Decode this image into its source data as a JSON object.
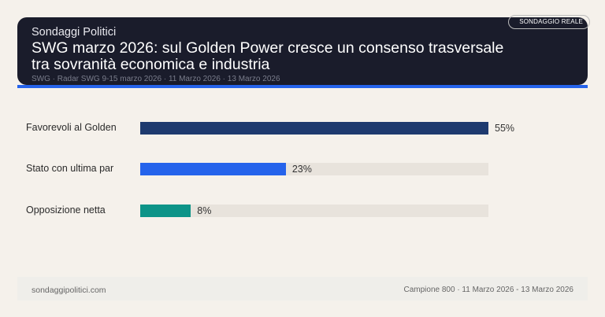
{
  "header": {
    "brand": "Sondaggi Politici",
    "title": "SWG marzo 2026: sul Golden Power cresce un consenso trasversale tra sovranità economica e industria",
    "subtitle": "SWG · Radar SWG 9-15 marzo 2026 · 11 Marzo 2026 · 13 Marzo 2026",
    "badge": "SONDAGGIO REALE"
  },
  "chart_data": {
    "type": "bar",
    "orientation": "horizontal",
    "categories": [
      "Favorevoli al Golden",
      "Stato con ultima par",
      "Opposizione netta"
    ],
    "values": [
      55,
      23,
      8
    ],
    "labels": [
      "55%",
      "23%",
      "8%"
    ],
    "colors": [
      "#1e3a6e",
      "#2563eb",
      "#0d9488"
    ],
    "xlim": [
      0,
      55
    ]
  },
  "footer": {
    "site": "sondaggipolitici.com",
    "meta": "Campione 800 · 11 Marzo 2026 - 13 Marzo 2026"
  }
}
